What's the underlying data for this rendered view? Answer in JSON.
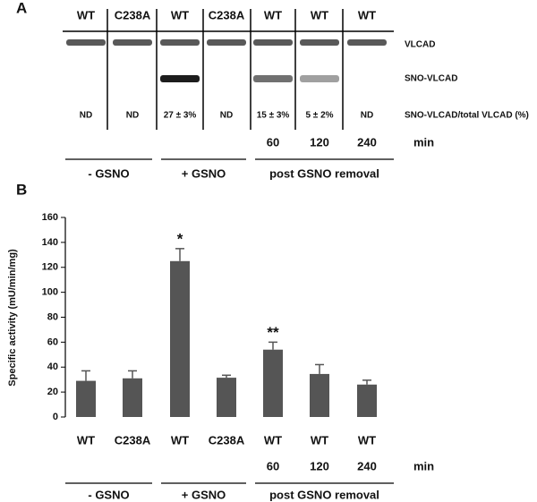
{
  "panel_a": {
    "label": "A",
    "lanes": [
      "WT",
      "C238A",
      "WT",
      "C238A",
      "WT",
      "WT",
      "WT"
    ],
    "band_labels": [
      "VLCAD",
      "SNO-VLCAD"
    ],
    "ratio_title": "SNO-VLCAD/total VLCAD (%)",
    "ratios": [
      "ND",
      "ND",
      "27 ± 3%",
      "ND",
      "15 ± 3%",
      "5 ± 2%",
      "ND"
    ],
    "times": [
      null,
      null,
      null,
      null,
      "60",
      "120",
      "240"
    ],
    "time_unit": "min",
    "groups": [
      "- GSNO",
      "+ GSNO",
      "post GSNO removal"
    ]
  },
  "chart_data": {
    "type": "bar",
    "label": "B",
    "y_label": "Specific activity (mU/min/mg)",
    "categories": [
      "WT",
      "C238A",
      "WT",
      "C238A",
      "WT",
      "WT",
      "WT"
    ],
    "values": [
      29,
      31,
      125,
      31.5,
      54,
      34.5,
      26
    ],
    "errors": [
      8,
      6,
      10,
      2,
      6,
      7.5,
      3.5
    ],
    "significance": [
      null,
      null,
      "*",
      null,
      "**",
      null,
      null
    ],
    "times": [
      null,
      null,
      null,
      null,
      "60",
      "120",
      "240"
    ],
    "time_unit": "min",
    "groups": [
      "- GSNO",
      "+ GSNO",
      "post GSNO removal"
    ],
    "color": "#555555",
    "ylim": [
      0,
      160
    ],
    "yticks": [
      0,
      20,
      40,
      60,
      80,
      100,
      120,
      140,
      160
    ]
  }
}
